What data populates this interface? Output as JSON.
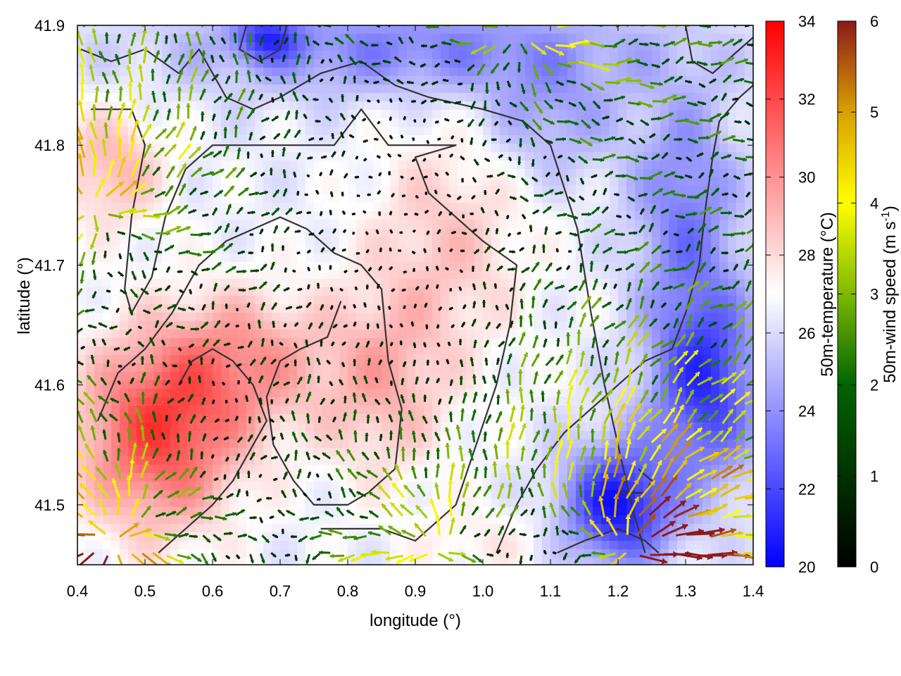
{
  "chart_data": {
    "type": "heatmap",
    "title": "",
    "xlabel": "longitude (°)",
    "ylabel": "latitude (°)",
    "xlim": [
      0.4,
      1.4
    ],
    "ylim": [
      41.45,
      41.9
    ],
    "x_ticks": [
      0.4,
      0.5,
      0.6,
      0.7,
      0.8,
      0.9,
      1.0,
      1.1,
      1.2,
      1.3,
      1.4
    ],
    "x_tick_labels": [
      "0.4",
      "0.5",
      "0.6",
      "0.7",
      "0.8",
      "0.9",
      "1.0",
      "1.1",
      "1.2",
      "1.3",
      "1.4"
    ],
    "y_ticks": [
      41.5,
      41.6,
      41.7,
      41.8,
      41.9
    ],
    "y_tick_labels": [
      "41.5",
      "41.6",
      "41.7",
      "41.8",
      "41.9"
    ],
    "overlay": "wind vectors colored by speed, terrain contour lines",
    "colorbars": [
      {
        "name": "temperature",
        "label": "50m-temperature (°C)",
        "range": [
          20,
          34
        ],
        "ticks": [
          20,
          22,
          24,
          26,
          28,
          30,
          32,
          34
        ],
        "tick_labels": [
          "20",
          "22",
          "24",
          "26",
          "28",
          "30",
          "32",
          "34"
        ],
        "stops": [
          {
            "value": 20,
            "color": "#0000ff"
          },
          {
            "value": 27,
            "color": "#ffffff"
          },
          {
            "value": 34,
            "color": "#ff0000"
          }
        ]
      },
      {
        "name": "wind_speed",
        "label_main": "50m-wind speed (m s",
        "label_sup": "-1",
        "label_end": ")",
        "range": [
          0,
          6
        ],
        "ticks": [
          0,
          1,
          2,
          3,
          4,
          5,
          6
        ],
        "tick_labels": [
          "0",
          "1",
          "2",
          "3",
          "4",
          "5",
          "6"
        ],
        "stops": [
          {
            "value": 0,
            "color": "#000000"
          },
          {
            "value": 2,
            "color": "#006400"
          },
          {
            "value": 3,
            "color": "#7fb800"
          },
          {
            "value": 4,
            "color": "#ffff00"
          },
          {
            "value": 5,
            "color": "#d9a000"
          },
          {
            "value": 6,
            "color": "#8b1a1a"
          }
        ]
      }
    ],
    "temperature_field": {
      "base": 26.5,
      "anomalies": [
        {
          "lon": 0.52,
          "lat": 41.56,
          "amp": 5.5,
          "sx": 0.12,
          "sy": 0.08
        },
        {
          "lon": 0.65,
          "lat": 41.62,
          "amp": 3.0,
          "sx": 0.12,
          "sy": 0.06
        },
        {
          "lon": 0.85,
          "lat": 41.6,
          "amp": 2.5,
          "sx": 0.1,
          "sy": 0.08
        },
        {
          "lon": 0.95,
          "lat": 41.72,
          "amp": 2.0,
          "sx": 0.12,
          "sy": 0.1
        },
        {
          "lon": 0.45,
          "lat": 41.78,
          "amp": 2.5,
          "sx": 0.08,
          "sy": 0.05
        },
        {
          "lon": 1.2,
          "lat": 41.5,
          "amp": -6.0,
          "sx": 0.08,
          "sy": 0.05
        },
        {
          "lon": 1.33,
          "lat": 41.6,
          "amp": -5.0,
          "sx": 0.08,
          "sy": 0.08
        },
        {
          "lon": 1.3,
          "lat": 41.75,
          "amp": -3.0,
          "sx": 0.08,
          "sy": 0.1
        },
        {
          "lon": 0.9,
          "lat": 41.88,
          "amp": -3.0,
          "sx": 0.35,
          "sy": 0.04
        },
        {
          "lon": 0.68,
          "lat": 41.89,
          "amp": -3.5,
          "sx": 0.05,
          "sy": 0.02
        },
        {
          "lon": 1.1,
          "lat": 41.82,
          "amp": -2.0,
          "sx": 0.1,
          "sy": 0.05
        },
        {
          "lon": 1.0,
          "lat": 41.47,
          "amp": 1.0,
          "sx": 0.1,
          "sy": 0.03
        }
      ]
    },
    "wind_field": {
      "grid_spacing_deg": 0.0175,
      "calm_centers": [
        {
          "lon": 0.8,
          "lat": 41.7,
          "r": 0.12
        },
        {
          "lon": 0.93,
          "lat": 41.65,
          "r": 0.1
        },
        {
          "lon": 0.62,
          "lat": 41.58,
          "r": 0.06
        },
        {
          "lon": 0.9,
          "lat": 41.8,
          "r": 0.08
        }
      ],
      "sources": [
        {
          "lon": 1.22,
          "lat": 41.46,
          "strength": 6.0
        },
        {
          "lon": 0.45,
          "lat": 41.47,
          "strength": 6.0
        },
        {
          "lon": 0.93,
          "lat": 41.46,
          "strength": 4.5
        },
        {
          "lon": 1.05,
          "lat": 41.9,
          "strength": 4.0
        },
        {
          "lon": 0.42,
          "lat": 41.75,
          "strength": 4.5
        }
      ]
    },
    "terrain_contours": [
      [
        [
          0.405,
          41.88
        ],
        [
          0.45,
          41.87
        ],
        [
          0.5,
          41.88
        ],
        [
          0.55,
          41.86
        ],
        [
          0.58,
          41.88
        ],
        [
          0.62,
          41.84
        ],
        [
          0.66,
          41.83
        ],
        [
          0.7,
          41.84
        ],
        [
          0.76,
          41.86
        ],
        [
          0.82,
          41.87
        ],
        [
          0.87,
          41.85
        ],
        [
          0.92,
          41.84
        ],
        [
          1.0,
          41.83
        ],
        [
          1.06,
          41.82
        ],
        [
          1.1,
          41.8
        ],
        [
          1.14,
          41.73
        ],
        [
          1.16,
          41.66
        ],
        [
          1.18,
          41.6
        ],
        [
          1.2,
          41.55
        ],
        [
          1.22,
          41.5
        ],
        [
          1.24,
          41.46
        ]
      ],
      [
        [
          0.42,
          41.83
        ],
        [
          0.48,
          41.83
        ],
        [
          0.5,
          41.8
        ],
        [
          0.48,
          41.74
        ],
        [
          0.47,
          41.68
        ],
        [
          0.48,
          41.66
        ],
        [
          0.51,
          41.69
        ],
        [
          0.53,
          41.74
        ],
        [
          0.56,
          41.78
        ],
        [
          0.6,
          41.8
        ],
        [
          0.7,
          41.8
        ],
        [
          0.78,
          41.8
        ],
        [
          0.82,
          41.83
        ],
        [
          0.86,
          41.8
        ],
        [
          0.93,
          41.8
        ],
        [
          0.96,
          41.8
        ],
        [
          0.9,
          41.79
        ],
        [
          0.92,
          41.76
        ],
        [
          1.0,
          41.72
        ],
        [
          1.05,
          41.7
        ],
        [
          1.04,
          41.65
        ],
        [
          1.02,
          41.6
        ],
        [
          0.99,
          41.55
        ],
        [
          0.96,
          41.5
        ],
        [
          0.9,
          41.47
        ],
        [
          0.85,
          41.48
        ],
        [
          0.8,
          41.48
        ],
        [
          0.76,
          41.48
        ]
      ],
      [
        [
          0.43,
          41.57
        ],
        [
          0.46,
          41.61
        ],
        [
          0.5,
          41.63
        ],
        [
          0.54,
          41.66
        ],
        [
          0.58,
          41.7
        ],
        [
          0.62,
          41.72
        ],
        [
          0.66,
          41.73
        ],
        [
          0.7,
          41.74
        ],
        [
          0.74,
          41.73
        ],
        [
          0.78,
          41.71
        ],
        [
          0.82,
          41.7
        ],
        [
          0.85,
          41.68
        ],
        [
          0.86,
          41.62
        ],
        [
          0.88,
          41.58
        ],
        [
          0.87,
          41.53
        ],
        [
          0.83,
          41.51
        ],
        [
          0.8,
          41.5
        ],
        [
          0.75,
          41.5
        ],
        [
          0.72,
          41.52
        ],
        [
          0.69,
          41.55
        ],
        [
          0.68,
          41.59
        ],
        [
          0.7,
          41.62
        ],
        [
          0.73,
          41.63
        ],
        [
          0.77,
          41.64
        ],
        [
          0.79,
          41.67
        ]
      ],
      [
        [
          0.52,
          41.46
        ],
        [
          0.56,
          41.48
        ],
        [
          0.6,
          41.5
        ],
        [
          0.63,
          41.52
        ],
        [
          0.66,
          41.55
        ],
        [
          0.68,
          41.57
        ],
        [
          0.66,
          41.6
        ],
        [
          0.63,
          41.62
        ],
        [
          0.6,
          41.63
        ],
        [
          0.57,
          41.62
        ],
        [
          0.55,
          41.6
        ]
      ],
      [
        [
          1.02,
          41.46
        ],
        [
          1.05,
          41.5
        ],
        [
          1.08,
          41.53
        ],
        [
          1.12,
          41.56
        ],
        [
          1.16,
          41.58
        ],
        [
          1.2,
          41.6
        ],
        [
          1.24,
          41.62
        ],
        [
          1.28,
          41.63
        ],
        [
          1.3,
          41.66
        ],
        [
          1.32,
          41.7
        ],
        [
          1.33,
          41.75
        ],
        [
          1.34,
          41.79
        ],
        [
          1.35,
          41.82
        ],
        [
          1.38,
          41.84
        ],
        [
          1.4,
          41.85
        ]
      ],
      [
        [
          1.11,
          41.46
        ],
        [
          1.15,
          41.47
        ],
        [
          1.2,
          41.48
        ],
        [
          1.24,
          41.47
        ],
        [
          1.26,
          41.46
        ]
      ],
      [
        [
          1.2,
          41.51
        ],
        [
          1.24,
          41.51
        ],
        [
          1.25,
          41.52
        ],
        [
          1.23,
          41.53
        ]
      ],
      [
        [
          0.65,
          41.9
        ],
        [
          0.64,
          41.88
        ],
        [
          0.67,
          41.87
        ],
        [
          0.7,
          41.88
        ],
        [
          0.71,
          41.9
        ]
      ],
      [
        [
          1.3,
          41.9
        ],
        [
          1.31,
          41.87
        ],
        [
          1.34,
          41.86
        ],
        [
          1.38,
          41.88
        ],
        [
          1.4,
          41.89
        ]
      ]
    ]
  }
}
